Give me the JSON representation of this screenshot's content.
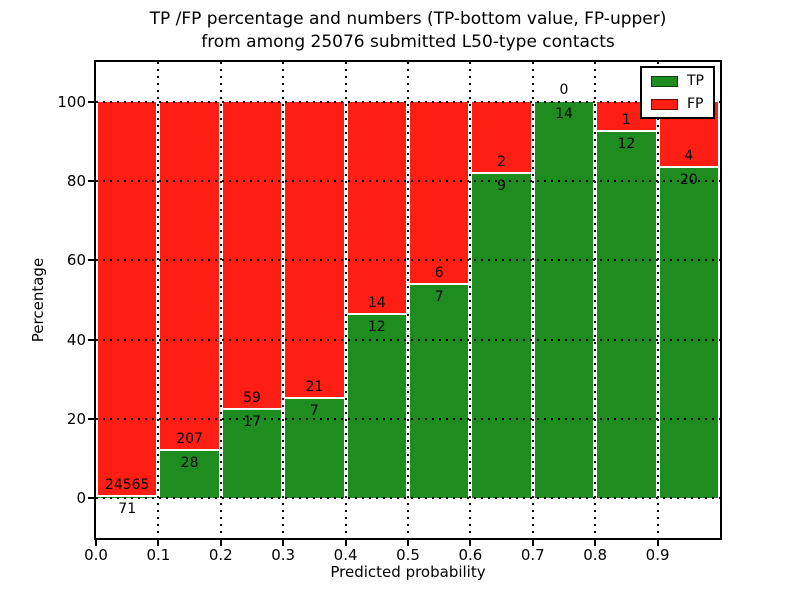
{
  "title": {
    "line1": "TP /FP percentage and numbers (TP-bottom value, FP-upper)",
    "line2": "from among 25076 submitted L50-type contacts"
  },
  "chart_data": {
    "type": "bar",
    "stacked": true,
    "normalized_to_percent": true,
    "title": "TP /FP percentage and numbers (TP-bottom value, FP-upper) from among 25076 submitted L50-type contacts",
    "total_submitted": 25076,
    "contact_type": "L50",
    "xlabel": "Predicted probability",
    "ylabel": "Percentage",
    "bin_starts": [
      0.0,
      0.1,
      0.2,
      0.3,
      0.4,
      0.5,
      0.6,
      0.7,
      0.8,
      0.9
    ],
    "bin_width": 0.1,
    "series": [
      {
        "name": "TP",
        "color": "#1f8c1f",
        "counts": [
          71,
          28,
          17,
          7,
          12,
          7,
          9,
          14,
          12,
          20
        ]
      },
      {
        "name": "FP",
        "color": "#ff1e14",
        "counts": [
          24565,
          207,
          59,
          21,
          14,
          6,
          2,
          0,
          1,
          4
        ]
      }
    ],
    "tp_percent_of_bin": [
      0.29,
      11.91,
      22.37,
      25.0,
      46.15,
      53.85,
      81.82,
      100.0,
      92.31,
      83.33
    ],
    "xtick_labels": [
      "0.0",
      "0.1",
      "0.2",
      "0.3",
      "0.4",
      "0.5",
      "0.6",
      "0.7",
      "0.8",
      "0.9"
    ],
    "ytick_labels": [
      "0",
      "20",
      "40",
      "60",
      "80",
      "100"
    ],
    "ytick_values": [
      0,
      20,
      40,
      60,
      80,
      100
    ],
    "xlim": [
      0.0,
      1.0
    ],
    "ylim": [
      -10,
      110
    ],
    "grid": {
      "visible": true,
      "linestyle": "dotted",
      "color": "#000000"
    },
    "legend": {
      "position": "upper-right",
      "entries": [
        {
          "label": "TP",
          "color": "#1f8c1f"
        },
        {
          "label": "FP",
          "color": "#ff1e14"
        }
      ]
    }
  }
}
